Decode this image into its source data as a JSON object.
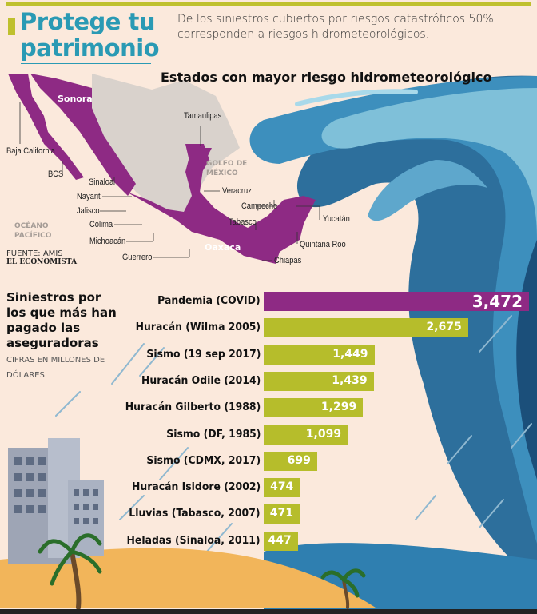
{
  "header": {
    "title_line1": "Protege tu",
    "title_line2": "patrimonio",
    "intro": "De los siniestros cubiertos por riesgos catastróficos 50% corresponden a riesgos hidrometeorológicos."
  },
  "map": {
    "title": "Estados con mayor riesgo hidrometeorológico",
    "states": [
      "Sonora",
      "Baja California",
      "BCS",
      "Sinaloa",
      "Nayarit",
      "Jalisco",
      "Colima",
      "Michoacán",
      "Guerrero",
      "Oaxaca",
      "Chiapas",
      "Tabasco",
      "Campeche",
      "Yucatán",
      "Quintana Roo",
      "Veracruz",
      "Tamaulipas"
    ],
    "sea_gulf": "GOLFO DE MÉXICO",
    "sea_pacific": "OCÉANO PACÍFICO",
    "highlight_color": "#8e2a84"
  },
  "source": "FUENTE: AMIS",
  "brand": "EL ECONOMISTA",
  "chart_data": {
    "type": "bar",
    "orientation": "horizontal",
    "title": "Siniestros por los que más han pagado las aseguradoras",
    "subtitle": "CIFRAS EN MILLONES DE DÓLARES",
    "categories": [
      "Pandemia (COVID)",
      "Huracán (Wilma 2005)",
      "Sismo (19 sep 2017)",
      "Huracán Odile (2014)",
      "Huracán Gilberto (1988)",
      "Sismo (DF, 1985)",
      "Sismo (CDMX, 2017)",
      "Huracán Isidore (2002)",
      "Lluvias (Tabasco, 2007)",
      "Heladas (Sinaloa, 2011)"
    ],
    "values": [
      3472,
      2675,
      1449,
      1439,
      1299,
      1099,
      699,
      474,
      471,
      447
    ],
    "labels": [
      "3,472",
      "2,675",
      "1,449",
      "1,439",
      "1,299",
      "1,099",
      "699",
      "474",
      "471",
      "447"
    ],
    "colors": {
      "highlight": "#8e2a84",
      "default": "#b6bd2b"
    }
  }
}
